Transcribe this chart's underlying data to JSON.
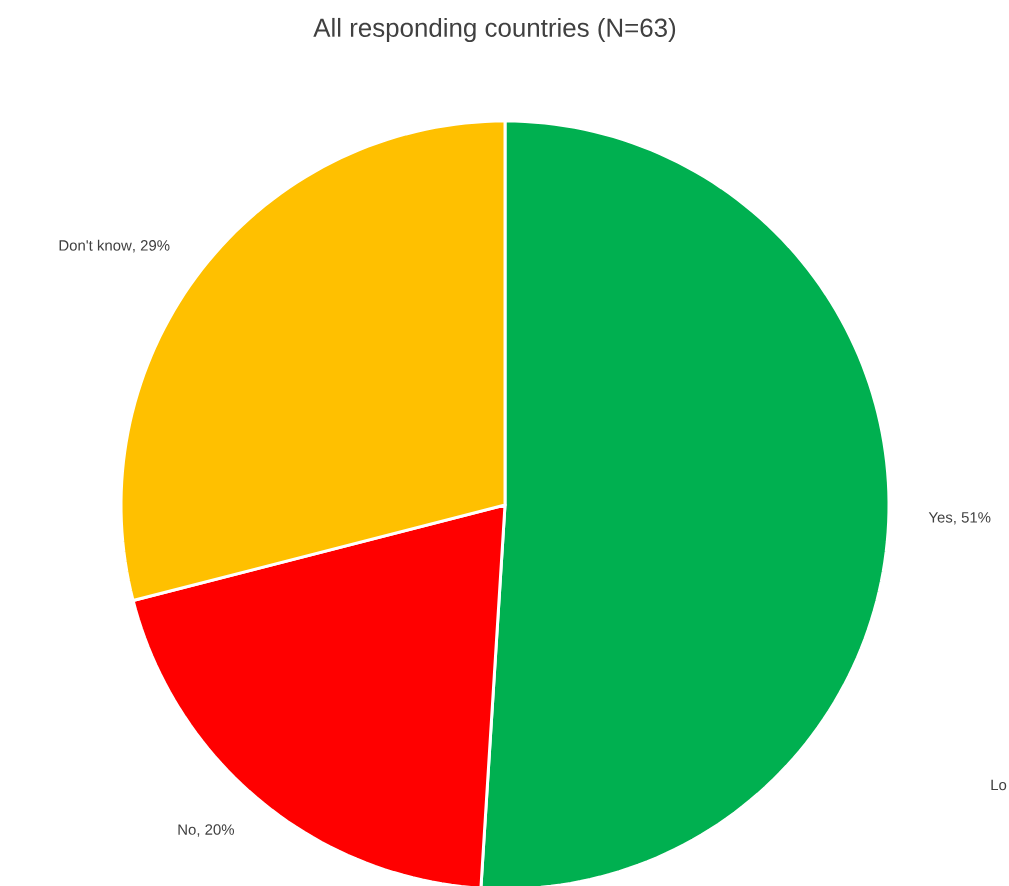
{
  "chart_data": {
    "type": "pie",
    "title": "All responding countries (N=63)",
    "categories": [
      "Yes",
      "No",
      "Don't know"
    ],
    "values": [
      51,
      20,
      29
    ],
    "value_labels": [
      ", 51%",
      ", 20%",
      ", 29%"
    ],
    "colors": [
      "#00b050",
      "#ff0000",
      "#ffc000"
    ],
    "annotations": [
      "Lo"
    ]
  }
}
